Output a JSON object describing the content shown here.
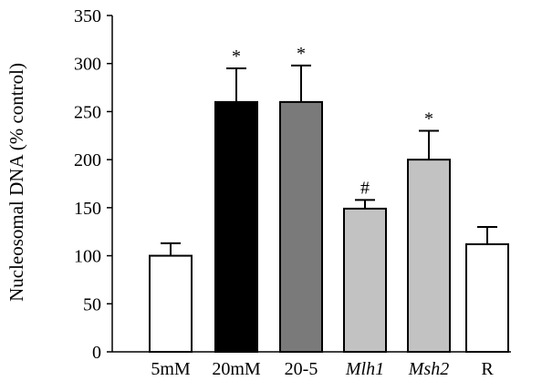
{
  "chart_data": {
    "type": "bar",
    "ylabel": "Nucleosomal DNA (% control)",
    "ylim": [
      0,
      350
    ],
    "yticks": [
      0,
      50,
      100,
      150,
      200,
      250,
      300,
      350
    ],
    "categories": [
      "5mM",
      "20mM",
      "20-5",
      "Mlh1",
      "Msh2",
      "R"
    ],
    "italic_categories": [
      "Mlh1",
      "Msh2"
    ],
    "values": [
      100,
      260,
      260,
      149,
      200,
      112
    ],
    "errors": [
      13,
      35,
      38,
      9,
      30,
      18
    ],
    "markers": [
      "",
      "*",
      "*",
      "#",
      "*",
      ""
    ],
    "colors": [
      "#ffffff",
      "#000000",
      "#7a7a7a",
      "#c2c2c2",
      "#c2c2c2",
      "#ffffff"
    ],
    "grid": false,
    "legend": "none"
  }
}
